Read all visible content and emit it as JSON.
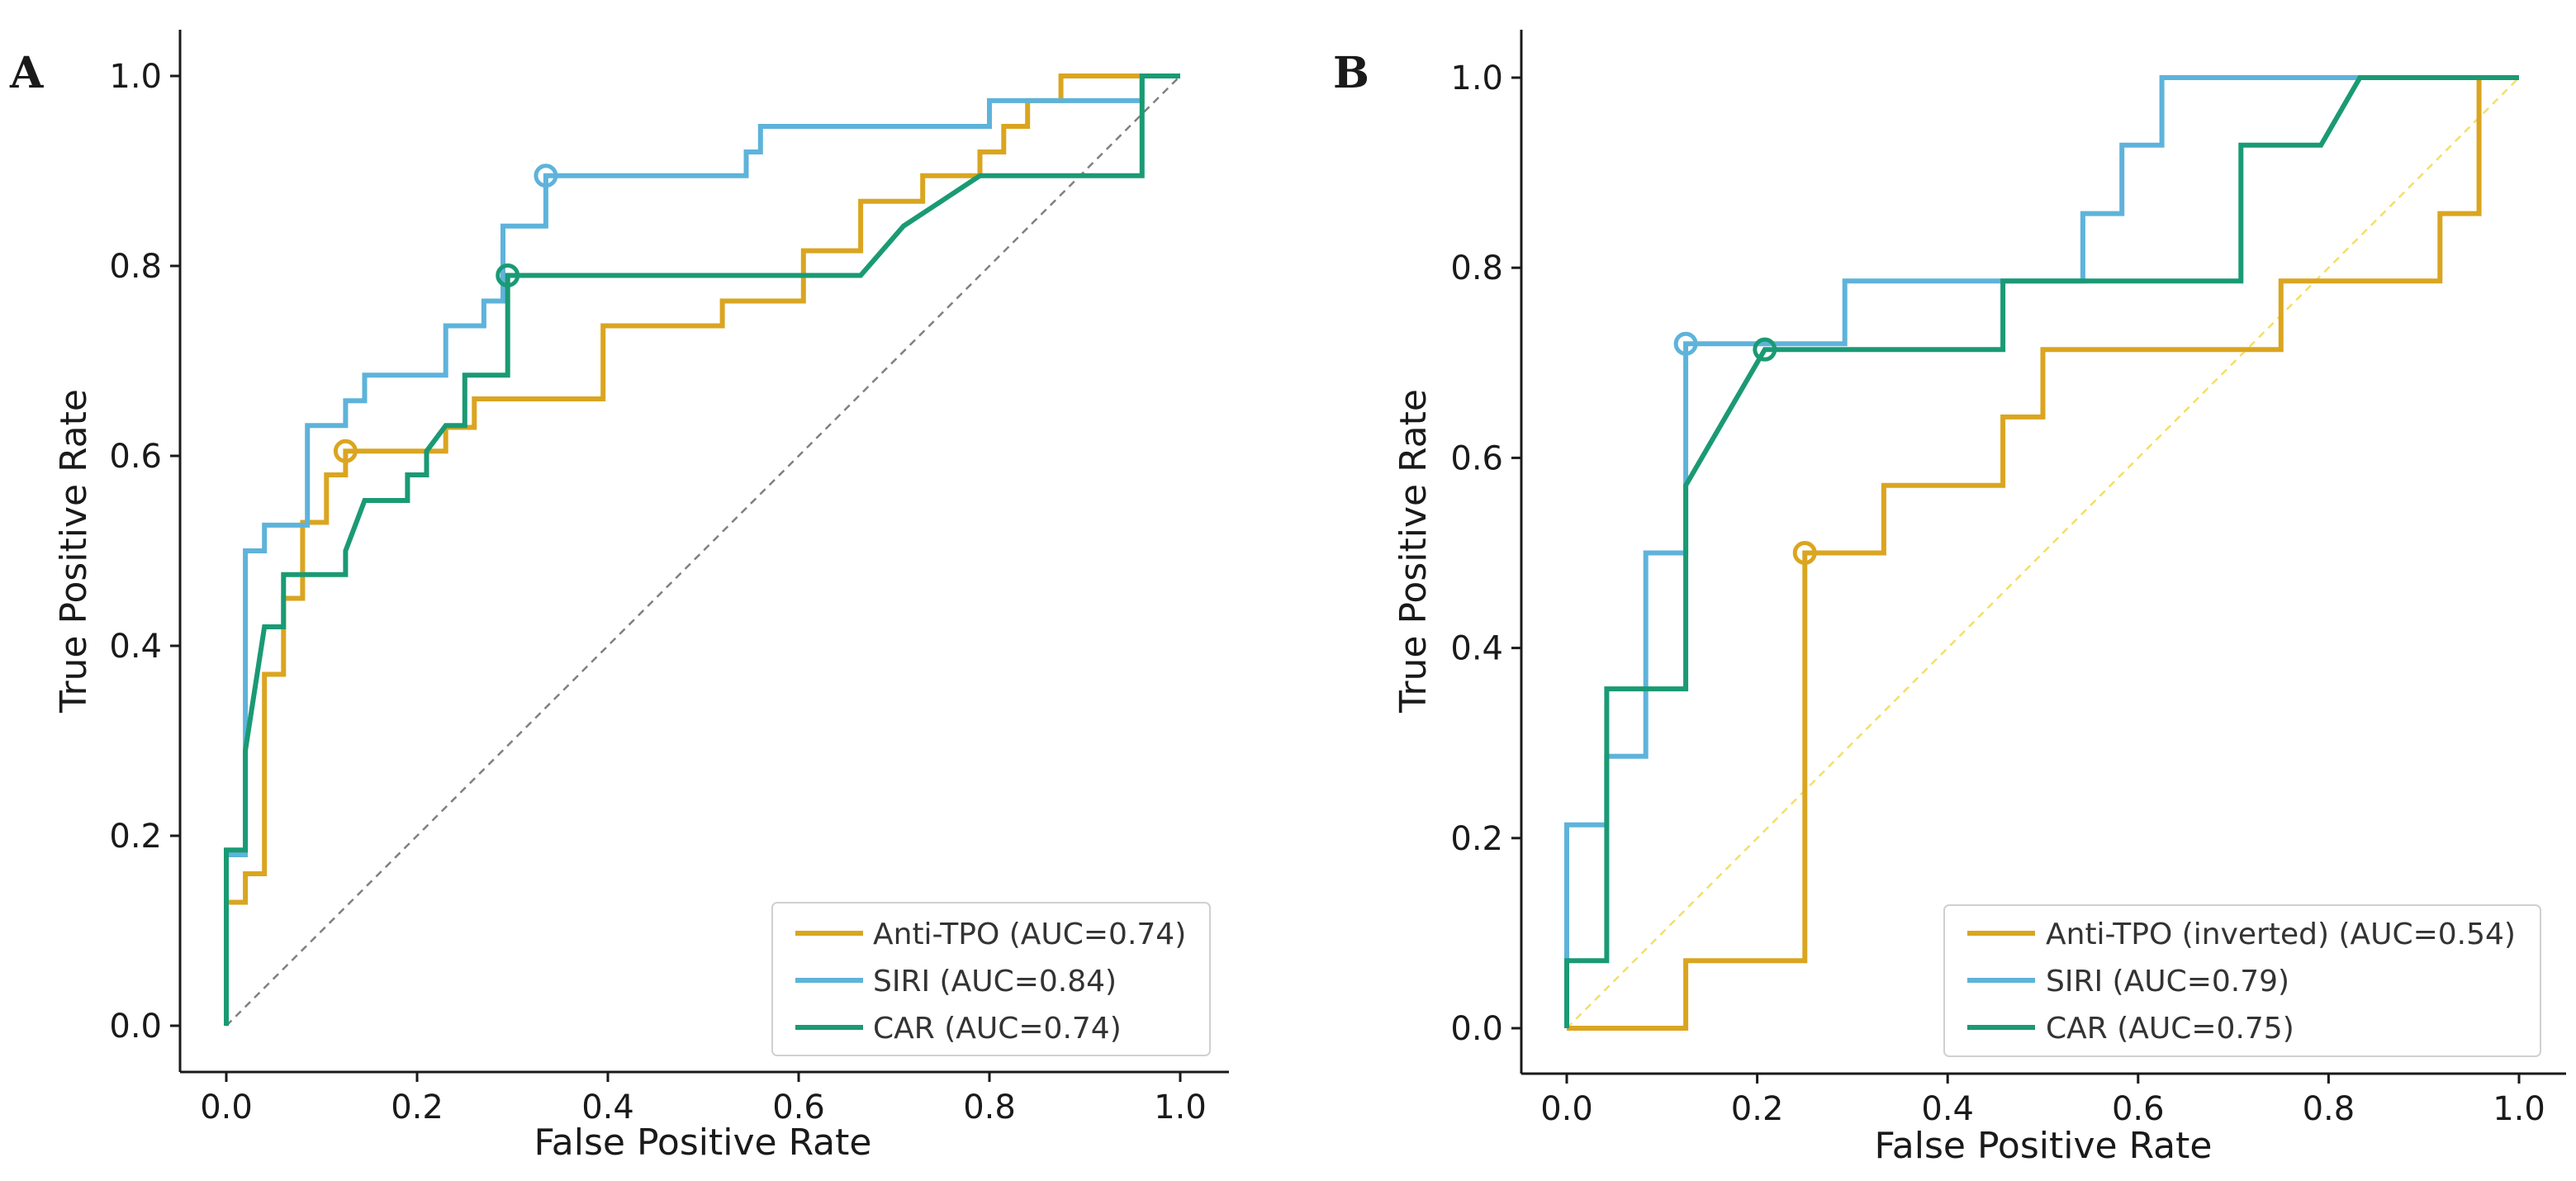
{
  "colors": {
    "anti_tpo": "#DAA520",
    "siri": "#5EB3DA",
    "car": "#1A9A74",
    "diagonal_A": "#808080",
    "diagonal_B": "#F2E066",
    "axis": "#1a1a1a"
  },
  "chart_data": [
    {
      "type": "line",
      "panel": "A",
      "xlabel": "False Positive Rate",
      "ylabel": "True Positive Rate",
      "xlim": [
        0,
        1
      ],
      "ylim": [
        0,
        1
      ],
      "xticks": [
        "0.0",
        "0.2",
        "0.4",
        "0.6",
        "0.8",
        "1.0"
      ],
      "yticks": [
        "0.0",
        "0.2",
        "0.4",
        "0.6",
        "0.8",
        "1.0"
      ],
      "grid": false,
      "legend_position": "bottom-right",
      "reference_line": {
        "style": "dashed",
        "color_key": "diagonal_A"
      },
      "series": [
        {
          "name": "Anti-TPO (AUC=0.74)",
          "color_key": "anti_tpo",
          "marker": [
            0.125,
            0.605
          ],
          "points": [
            [
              0,
              0
            ],
            [
              0,
              0.13
            ],
            [
              0.02,
              0.13
            ],
            [
              0.02,
              0.16
            ],
            [
              0.04,
              0.16
            ],
            [
              0.04,
              0.37
            ],
            [
              0.06,
              0.37
            ],
            [
              0.06,
              0.45
            ],
            [
              0.08,
              0.45
            ],
            [
              0.08,
              0.53
            ],
            [
              0.105,
              0.53
            ],
            [
              0.105,
              0.58
            ],
            [
              0.125,
              0.58
            ],
            [
              0.125,
              0.605
            ],
            [
              0.23,
              0.605
            ],
            [
              0.23,
              0.63
            ],
            [
              0.26,
              0.63
            ],
            [
              0.26,
              0.66
            ],
            [
              0.395,
              0.66
            ],
            [
              0.395,
              0.737
            ],
            [
              0.52,
              0.737
            ],
            [
              0.52,
              0.763
            ],
            [
              0.605,
              0.763
            ],
            [
              0.605,
              0.816
            ],
            [
              0.665,
              0.816
            ],
            [
              0.665,
              0.868
            ],
            [
              0.73,
              0.868
            ],
            [
              0.73,
              0.895
            ],
            [
              0.79,
              0.895
            ],
            [
              0.79,
              0.92
            ],
            [
              0.815,
              0.92
            ],
            [
              0.815,
              0.947
            ],
            [
              0.84,
              0.947
            ],
            [
              0.84,
              0.974
            ],
            [
              0.875,
              0.974
            ],
            [
              0.875,
              1.0
            ],
            [
              1.0,
              1.0
            ]
          ]
        },
        {
          "name": "SIRI (AUC=0.84)",
          "color_key": "siri",
          "marker": [
            0.335,
            0.895
          ],
          "points": [
            [
              0,
              0
            ],
            [
              0,
              0.18
            ],
            [
              0.02,
              0.18
            ],
            [
              0.02,
              0.5
            ],
            [
              0.04,
              0.5
            ],
            [
              0.04,
              0.527
            ],
            [
              0.085,
              0.527
            ],
            [
              0.085,
              0.632
            ],
            [
              0.125,
              0.632
            ],
            [
              0.125,
              0.658
            ],
            [
              0.145,
              0.658
            ],
            [
              0.145,
              0.685
            ],
            [
              0.23,
              0.685
            ],
            [
              0.23,
              0.737
            ],
            [
              0.27,
              0.737
            ],
            [
              0.27,
              0.763
            ],
            [
              0.29,
              0.763
            ],
            [
              0.29,
              0.842
            ],
            [
              0.335,
              0.842
            ],
            [
              0.335,
              0.895
            ],
            [
              0.545,
              0.895
            ],
            [
              0.545,
              0.92
            ],
            [
              0.56,
              0.92
            ],
            [
              0.56,
              0.947
            ],
            [
              0.8,
              0.947
            ],
            [
              0.8,
              0.974
            ],
            [
              0.96,
              0.974
            ],
            [
              0.96,
              1.0
            ],
            [
              1.0,
              1.0
            ]
          ]
        },
        {
          "name": "CAR (AUC=0.74)",
          "color_key": "car",
          "marker": [
            0.295,
            0.79
          ],
          "points": [
            [
              0,
              0
            ],
            [
              0,
              0.185
            ],
            [
              0.02,
              0.185
            ],
            [
              0.02,
              0.29
            ],
            [
              0.04,
              0.42
            ],
            [
              0.06,
              0.42
            ],
            [
              0.06,
              0.475
            ],
            [
              0.125,
              0.475
            ],
            [
              0.125,
              0.5
            ],
            [
              0.145,
              0.553
            ],
            [
              0.19,
              0.553
            ],
            [
              0.19,
              0.58
            ],
            [
              0.21,
              0.58
            ],
            [
              0.21,
              0.605
            ],
            [
              0.23,
              0.632
            ],
            [
              0.25,
              0.632
            ],
            [
              0.25,
              0.685
            ],
            [
              0.295,
              0.685
            ],
            [
              0.295,
              0.79
            ],
            [
              0.665,
              0.79
            ],
            [
              0.71,
              0.842
            ],
            [
              0.79,
              0.895
            ],
            [
              0.96,
              0.895
            ],
            [
              0.96,
              1.0
            ],
            [
              1.0,
              1.0
            ]
          ]
        }
      ]
    },
    {
      "type": "line",
      "panel": "B",
      "xlabel": "False Positive Rate",
      "ylabel": "True Positive Rate",
      "xlim": [
        0,
        1
      ],
      "ylim": [
        0,
        1
      ],
      "xticks": [
        "0.0",
        "0.2",
        "0.4",
        "0.6",
        "0.8",
        "1.0"
      ],
      "yticks": [
        "0.0",
        "0.2",
        "0.4",
        "0.6",
        "0.8",
        "1.0"
      ],
      "grid": false,
      "legend_position": "bottom-right",
      "reference_line": {
        "style": "dashed",
        "color_key": "diagonal_B"
      },
      "series": [
        {
          "name": "Anti-TPO (inverted) (AUC=0.54)",
          "color_key": "anti_tpo",
          "marker": [
            0.25,
            0.5
          ],
          "points": [
            [
              0,
              0
            ],
            [
              0.125,
              0
            ],
            [
              0.125,
              0.071
            ],
            [
              0.25,
              0.071
            ],
            [
              0.25,
              0.5
            ],
            [
              0.333,
              0.5
            ],
            [
              0.333,
              0.571
            ],
            [
              0.458,
              0.571
            ],
            [
              0.458,
              0.643
            ],
            [
              0.5,
              0.643
            ],
            [
              0.5,
              0.714
            ],
            [
              0.75,
              0.714
            ],
            [
              0.75,
              0.786
            ],
            [
              0.917,
              0.786
            ],
            [
              0.917,
              0.857
            ],
            [
              0.958,
              0.857
            ],
            [
              0.958,
              1.0
            ],
            [
              1.0,
              1.0
            ]
          ]
        },
        {
          "name": "SIRI (AUC=0.79)",
          "color_key": "siri",
          "marker": [
            0.125,
            0.72
          ],
          "points": [
            [
              0,
              0
            ],
            [
              0,
              0.214
            ],
            [
              0.042,
              0.214
            ],
            [
              0.042,
              0.286
            ],
            [
              0.083,
              0.286
            ],
            [
              0.083,
              0.5
            ],
            [
              0.125,
              0.5
            ],
            [
              0.125,
              0.72
            ],
            [
              0.292,
              0.72
            ],
            [
              0.292,
              0.786
            ],
            [
              0.542,
              0.786
            ],
            [
              0.542,
              0.857
            ],
            [
              0.583,
              0.857
            ],
            [
              0.583,
              0.929
            ],
            [
              0.625,
              0.929
            ],
            [
              0.625,
              1.0
            ],
            [
              1.0,
              1.0
            ]
          ]
        },
        {
          "name": "CAR (AUC=0.75)",
          "color_key": "car",
          "marker": [
            0.208,
            0.714
          ],
          "points": [
            [
              0,
              0
            ],
            [
              0,
              0.071
            ],
            [
              0.042,
              0.071
            ],
            [
              0.042,
              0.357
            ],
            [
              0.125,
              0.357
            ],
            [
              0.125,
              0.571
            ],
            [
              0.208,
              0.714
            ],
            [
              0.458,
              0.714
            ],
            [
              0.458,
              0.786
            ],
            [
              0.708,
              0.786
            ],
            [
              0.708,
              0.929
            ],
            [
              0.792,
              0.929
            ],
            [
              0.833,
              1.0
            ],
            [
              1.0,
              1.0
            ]
          ]
        }
      ]
    }
  ]
}
